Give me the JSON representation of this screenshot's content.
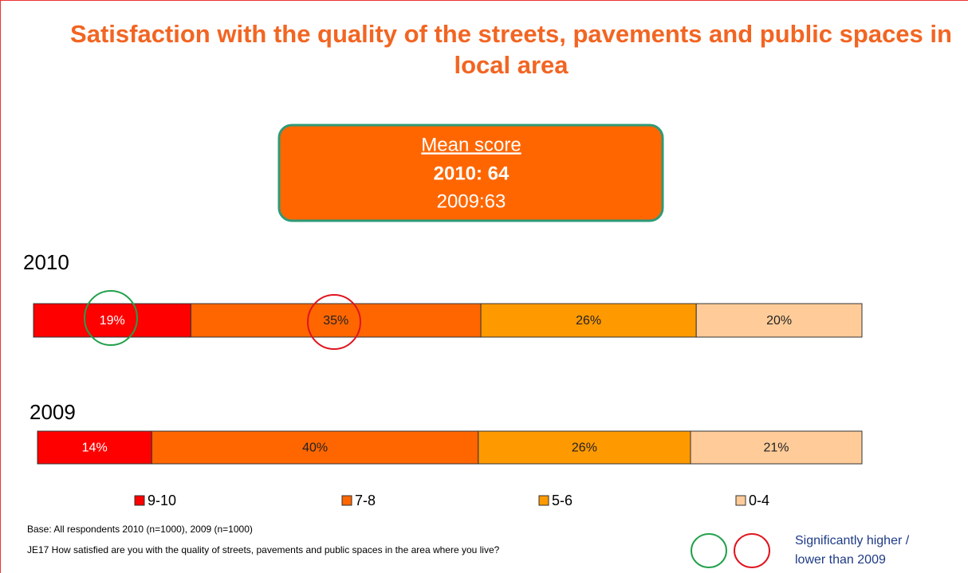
{
  "chart_data": {
    "type": "stacked_bar_horizontal",
    "title": "Satisfaction with the quality of the streets, pavements and public spaces in local area",
    "mean_box": {
      "heading": "Mean score",
      "current": "2010: 64",
      "previous": "2009:63"
    },
    "categories": [
      "2010",
      "2009"
    ],
    "series": [
      {
        "name": "9-10",
        "color": "#ff0000",
        "values": [
          19,
          14
        ],
        "value_labels": [
          "19%",
          "14%"
        ]
      },
      {
        "name": "7-8",
        "color": "#ff6600",
        "values": [
          35,
          40
        ],
        "value_labels": [
          "35%",
          "40%"
        ]
      },
      {
        "name": "5-6",
        "color": "#ff9900",
        "values": [
          26,
          26
        ],
        "value_labels": [
          "26%",
          "26%"
        ]
      },
      {
        "name": "0-4",
        "color": "#ffcc99",
        "values": [
          20,
          21
        ],
        "value_labels": [
          "20%",
          "21%"
        ]
      }
    ],
    "footnotes": [
      "Base: All respondents 2010 (n=1000), 2009 (n=1000)",
      "JE17 How satisfied are you with the quality of streets, pavements and public spaces in the area where you live?"
    ],
    "significance_legend": [
      "Significantly higher /",
      "lower than 2009"
    ]
  }
}
